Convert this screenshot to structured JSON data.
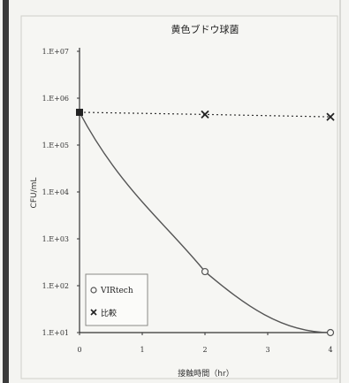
{
  "chart_data": {
    "type": "scatter",
    "title": "黄色ブドウ球菌",
    "xlabel": "接触時間（hr）",
    "ylabel": "CFU/mL",
    "xlim": [
      0,
      4
    ],
    "ylim_log10": [
      1,
      7
    ],
    "y_scale": "log",
    "x_ticks": [
      "0",
      "1",
      "2",
      "3",
      "4"
    ],
    "y_ticks": [
      "1.E+01",
      "1.E+02",
      "1.E+03",
      "1.E+04",
      "1.E+05",
      "1.E+06",
      "1.E+07"
    ],
    "grid": false,
    "legend_position": "bottom-left",
    "series": [
      {
        "name": "VIRtech",
        "marker": "circle",
        "line": "solid curve",
        "color": "#555555",
        "points": [
          {
            "x": 0,
            "y": 500000
          },
          {
            "x": 2,
            "y": 200
          },
          {
            "x": 4,
            "y": 10
          }
        ]
      },
      {
        "name": "比較",
        "marker": "x",
        "line": "dotted",
        "color": "#222222",
        "points": [
          {
            "x": 0,
            "y": 500000
          },
          {
            "x": 2,
            "y": 450000
          },
          {
            "x": 4,
            "y": 400000
          }
        ]
      }
    ]
  }
}
